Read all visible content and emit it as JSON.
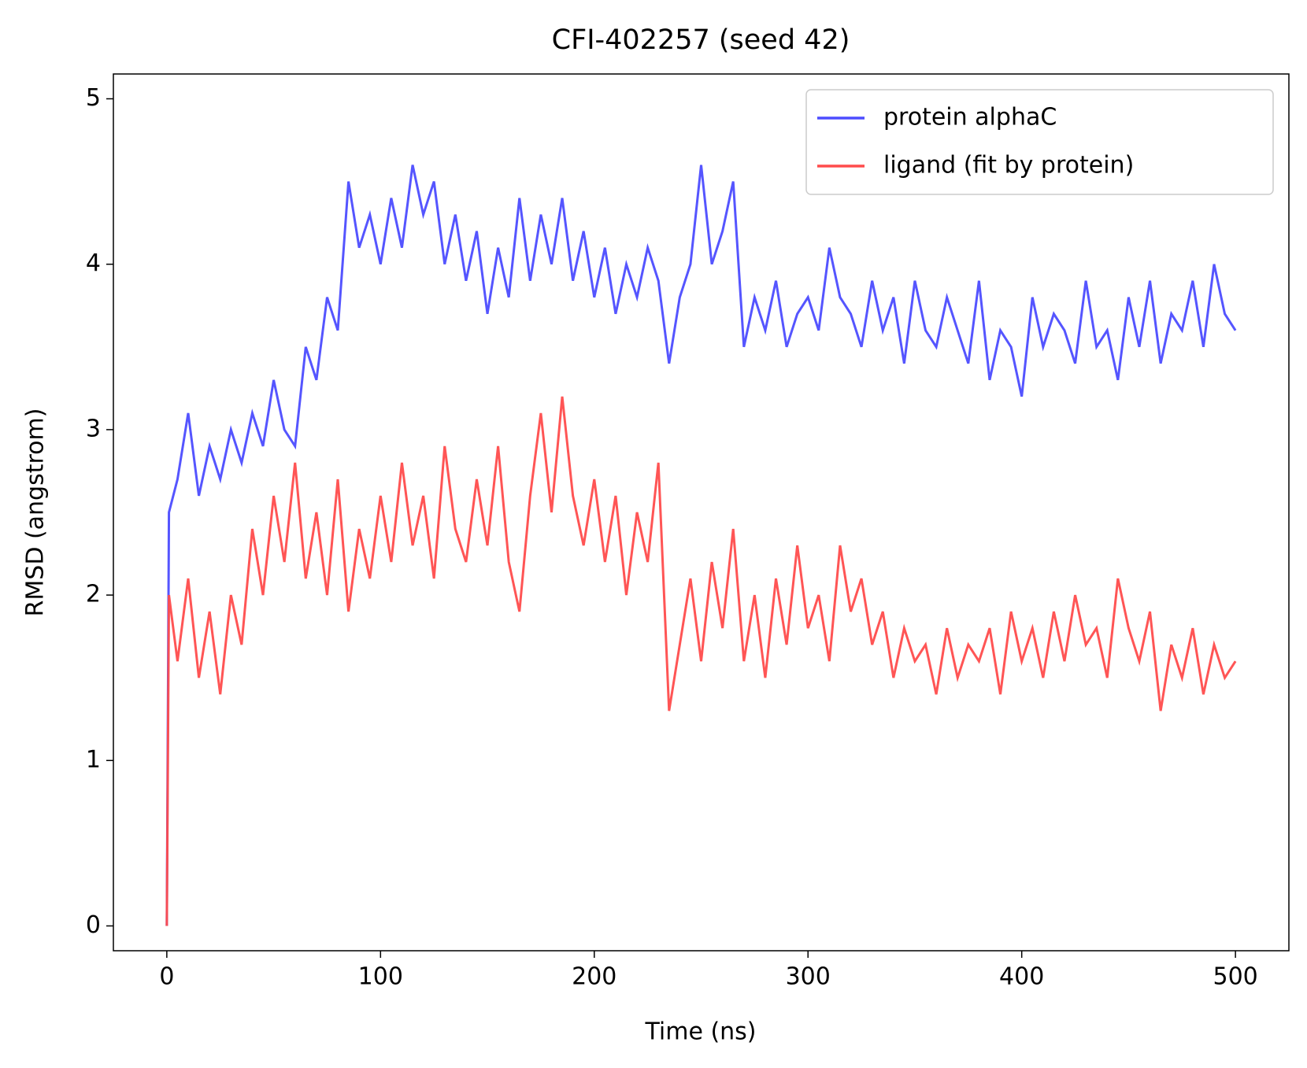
{
  "chart_data": {
    "type": "line",
    "title": "CFI-402257 (seed 42)",
    "x_label": "Time (ns)",
    "y_label": "RMSD (angstrom)",
    "x": [
      0,
      1,
      5,
      10,
      15,
      20,
      25,
      30,
      35,
      40,
      45,
      50,
      55,
      60,
      65,
      70,
      75,
      80,
      85,
      90,
      95,
      100,
      105,
      110,
      115,
      120,
      125,
      130,
      135,
      140,
      145,
      150,
      155,
      160,
      165,
      170,
      175,
      180,
      185,
      190,
      195,
      200,
      205,
      210,
      215,
      220,
      225,
      230,
      235,
      240,
      245,
      250,
      255,
      260,
      265,
      270,
      275,
      280,
      285,
      290,
      295,
      300,
      305,
      310,
      315,
      320,
      325,
      330,
      335,
      340,
      345,
      350,
      355,
      360,
      365,
      370,
      375,
      380,
      385,
      390,
      395,
      400,
      405,
      410,
      415,
      420,
      425,
      430,
      435,
      440,
      445,
      450,
      455,
      460,
      465,
      470,
      475,
      480,
      485,
      490,
      495,
      500
    ],
    "series": [
      {
        "name": "protein alphaC",
        "color": "#4c4cff",
        "values": [
          0,
          2.5,
          2.7,
          3.1,
          2.6,
          2.9,
          2.7,
          3.0,
          2.8,
          3.1,
          2.9,
          3.3,
          3.0,
          2.9,
          3.5,
          3.3,
          3.8,
          3.6,
          4.5,
          4.1,
          4.3,
          4.0,
          4.4,
          4.1,
          4.6,
          4.3,
          4.5,
          4.0,
          4.3,
          3.9,
          4.2,
          3.7,
          4.1,
          3.8,
          4.4,
          3.9,
          4.3,
          4.0,
          4.4,
          3.9,
          4.2,
          3.8,
          4.1,
          3.7,
          4.0,
          3.8,
          4.1,
          3.9,
          3.4,
          3.8,
          4.0,
          4.6,
          4.0,
          4.2,
          4.5,
          3.5,
          3.8,
          3.6,
          3.9,
          3.5,
          3.7,
          3.8,
          3.6,
          4.1,
          3.8,
          3.7,
          3.5,
          3.9,
          3.6,
          3.8,
          3.4,
          3.9,
          3.6,
          3.5,
          3.8,
          3.6,
          3.4,
          3.9,
          3.3,
          3.6,
          3.5,
          3.2,
          3.8,
          3.5,
          3.7,
          3.6,
          3.4,
          3.9,
          3.5,
          3.6,
          3.3,
          3.8,
          3.5,
          3.9,
          3.4,
          3.7,
          3.6,
          3.9,
          3.5,
          4.0,
          3.7,
          3.6
        ]
      },
      {
        "name": "ligand (fit by protein)",
        "color": "#ff4c4c",
        "values": [
          0,
          2.0,
          1.6,
          2.1,
          1.5,
          1.9,
          1.4,
          2.0,
          1.7,
          2.4,
          2.0,
          2.6,
          2.2,
          2.8,
          2.1,
          2.5,
          2.0,
          2.7,
          1.9,
          2.4,
          2.1,
          2.6,
          2.2,
          2.8,
          2.3,
          2.6,
          2.1,
          2.9,
          2.4,
          2.2,
          2.7,
          2.3,
          2.9,
          2.2,
          1.9,
          2.6,
          3.1,
          2.5,
          3.2,
          2.6,
          2.3,
          2.7,
          2.2,
          2.6,
          2.0,
          2.5,
          2.2,
          2.8,
          1.3,
          1.7,
          2.1,
          1.6,
          2.2,
          1.8,
          2.4,
          1.6,
          2.0,
          1.5,
          2.1,
          1.7,
          2.3,
          1.8,
          2.0,
          1.6,
          2.3,
          1.9,
          2.1,
          1.7,
          1.9,
          1.5,
          1.8,
          1.6,
          1.7,
          1.4,
          1.8,
          1.5,
          1.7,
          1.6,
          1.8,
          1.4,
          1.9,
          1.6,
          1.8,
          1.5,
          1.9,
          1.6,
          2.0,
          1.7,
          1.8,
          1.5,
          2.1,
          1.8,
          1.6,
          1.9,
          1.3,
          1.7,
          1.5,
          1.8,
          1.4,
          1.7,
          1.5,
          1.6
        ]
      }
    ],
    "xlim": [
      -25,
      525
    ],
    "ylim": [
      -0.15,
      5.15
    ],
    "xticks": [
      0,
      100,
      200,
      300,
      400,
      500
    ],
    "yticks": [
      0,
      1,
      2,
      3,
      4,
      5
    ],
    "legend": "upper right",
    "grid": false
  }
}
